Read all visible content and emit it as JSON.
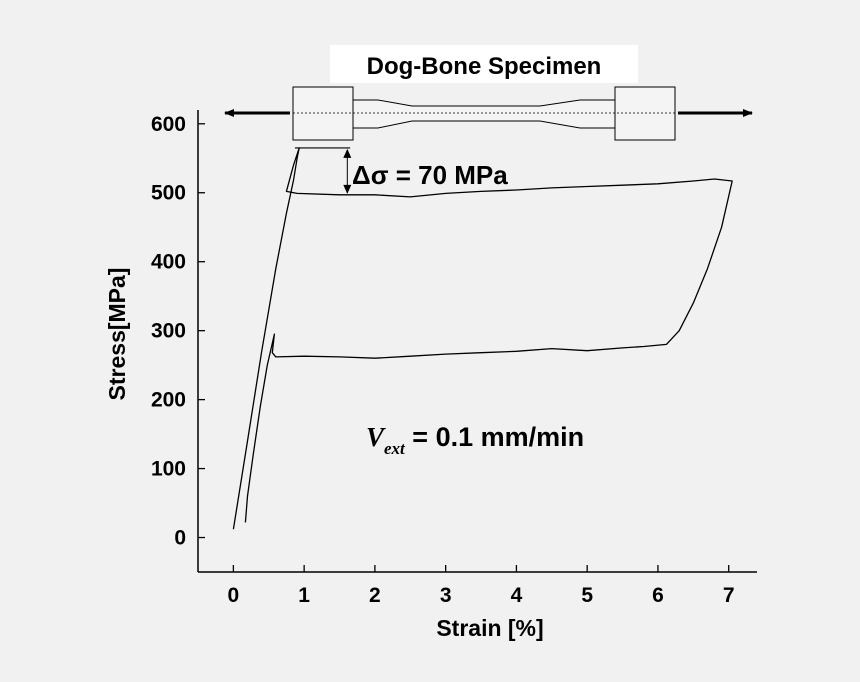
{
  "colors": {
    "background": "#f1f1f1",
    "ink": "#000000",
    "title_box": "#ffffff",
    "specimen_fill": "#f4f4f4"
  },
  "chart_data": {
    "type": "line",
    "title": "Dog-Bone Specimen",
    "xlabel": "Strain [%]",
    "ylabel": "Stress[MPa]",
    "xlim": [
      -0.5,
      7.4
    ],
    "ylim": [
      -50,
      620
    ],
    "xticks": [
      0,
      1,
      2,
      3,
      4,
      5,
      6,
      7
    ],
    "yticks": [
      0,
      100,
      200,
      300,
      400,
      500,
      600
    ],
    "grid": false,
    "series": [
      {
        "points": [
          [
            0.0,
            12
          ],
          [
            0.2,
            140
          ],
          [
            0.4,
            270
          ],
          [
            0.6,
            390
          ],
          [
            0.75,
            470
          ],
          [
            0.85,
            518
          ],
          [
            0.9,
            550
          ],
          [
            0.93,
            565
          ],
          [
            0.85,
            540
          ],
          [
            0.75,
            502
          ],
          [
            0.9,
            499
          ],
          [
            1.5,
            497
          ],
          [
            2.0,
            497
          ],
          [
            2.5,
            494
          ],
          [
            3.0,
            499
          ],
          [
            3.5,
            502
          ],
          [
            4.0,
            504
          ],
          [
            4.5,
            507
          ],
          [
            5.0,
            509
          ],
          [
            5.5,
            511
          ],
          [
            6.0,
            513
          ],
          [
            6.5,
            517
          ],
          [
            6.8,
            520
          ],
          [
            7.05,
            517
          ],
          [
            6.9,
            450
          ],
          [
            6.7,
            390
          ],
          [
            6.5,
            340
          ],
          [
            6.3,
            300
          ],
          [
            6.12,
            280
          ],
          [
            5.8,
            277
          ],
          [
            5.5,
            275
          ],
          [
            5.0,
            271
          ],
          [
            4.5,
            274
          ],
          [
            4.0,
            270
          ],
          [
            3.5,
            268
          ],
          [
            3.0,
            266
          ],
          [
            2.5,
            263
          ],
          [
            2.0,
            260
          ],
          [
            1.5,
            262
          ],
          [
            1.0,
            263
          ],
          [
            0.6,
            262
          ],
          [
            0.55,
            268
          ],
          [
            0.58,
            295
          ],
          [
            0.48,
            250
          ],
          [
            0.38,
            190
          ],
          [
            0.28,
            120
          ],
          [
            0.2,
            60
          ],
          [
            0.17,
            22
          ]
        ]
      }
    ],
    "annotations": [
      {
        "text": "Δσ = 70 MPa",
        "delta_sigma": 70,
        "from_stress": 565,
        "to_stress": 497
      },
      {
        "text": "V",
        "subscript": "ext",
        "rest": " = 0.1 mm/min"
      }
    ]
  }
}
